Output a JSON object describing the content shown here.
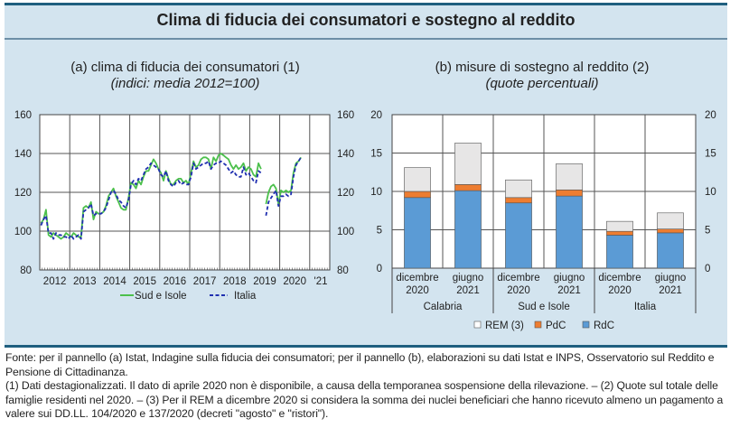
{
  "title": "Clima di fiducia dei consumatori e sostegno al reddito",
  "panel_a": {
    "title": "(a) clima di fiducia dei consumatori (1)",
    "subtitle": "(indici: media 2012=100)"
  },
  "panel_b": {
    "title": "(b) misure di sostegno al reddito (2)",
    "subtitle": "(quote percentuali)"
  },
  "notes": {
    "source": "Fonte: per il pannello (a) Istat, Indagine sulla fiducia dei consumatori; per il pannello (b), elaborazioni su dati Istat e INPS, Osservatorio sul Reddito e Pensione di Cittadinanza.",
    "footnotes": "(1) Dati destagionalizzati. Il dato di aprile 2020 non è disponibile, a causa della temporanea sospensione della rilevazione. – (2) Quote sul totale delle famiglie residenti nel 2020. – (3) Per il REM a dicembre 2020 si considera la somma dei nuclei beneficiari che hanno ricevuto almeno un pagamento a valere sui DD.LL. 104/2020 e 137/2020 (decreti \"agosto\" e \"ristori\")."
  },
  "chart_data": [
    {
      "type": "line",
      "title": "(a) clima di fiducia dei consumatori (1)",
      "subtitle": "(indici: media 2012=100)",
      "xlabel": "",
      "ylabel": "",
      "ylim": [
        80,
        160
      ],
      "yticks": [
        80,
        100,
        120,
        140,
        160
      ],
      "xtick_labels": [
        "2012",
        "2013",
        "2014",
        "2015",
        "2016",
        "2017",
        "2018",
        "2019",
        "2020",
        "'21"
      ],
      "x_start": "2012-01",
      "frequency": "monthly",
      "grid": true,
      "legend_position": "bottom",
      "series": [
        {
          "name": "Sud e Isole",
          "color": "#4cc04c",
          "style": "solid",
          "values": [
            104,
            106,
            111,
            98,
            97,
            99,
            98,
            97,
            96,
            97,
            99,
            98,
            97,
            99,
            98,
            97,
            97,
            112,
            113,
            112,
            115,
            106,
            110,
            109,
            109,
            110,
            113,
            118,
            120,
            122,
            118,
            115,
            112,
            111,
            111,
            117,
            125,
            124,
            122,
            126,
            124,
            128,
            131,
            131,
            134,
            137,
            135,
            132,
            130,
            126,
            131,
            127,
            124,
            124,
            126,
            127,
            127,
            125,
            126,
            124,
            130,
            136,
            133,
            134,
            137,
            138,
            138,
            137,
            132,
            138,
            136,
            139,
            140,
            139,
            138,
            137,
            134,
            132,
            134,
            132,
            133,
            135,
            131,
            133,
            132,
            129,
            128,
            135,
            132,
            null,
            114,
            120,
            123,
            124,
            122,
            114,
            121,
            120,
            121,
            120,
            121,
            130,
            135,
            136,
            138
          ]
        },
        {
          "name": "Italia",
          "color": "#1f2fb0",
          "style": "dashed",
          "values": [
            103,
            106,
            108,
            99,
            99,
            96,
            99,
            98,
            98,
            97,
            97,
            96,
            98,
            96,
            97,
            98,
            96,
            110,
            111,
            112,
            114,
            108,
            109,
            109,
            109,
            110,
            112,
            116,
            120,
            121,
            119,
            116,
            115,
            113,
            112,
            116,
            124,
            126,
            124,
            127,
            126,
            129,
            132,
            133,
            135,
            134,
            133,
            132,
            129,
            128,
            131,
            126,
            124,
            123,
            125,
            126,
            124,
            125,
            124,
            124,
            128,
            135,
            132,
            133,
            134,
            135,
            135,
            136,
            132,
            134,
            135,
            135,
            136,
            135,
            134,
            132,
            130,
            131,
            129,
            128,
            128,
            133,
            129,
            130,
            128,
            126,
            125,
            131,
            130,
            null,
            108,
            115,
            117,
            119,
            121,
            113,
            118,
            118,
            119,
            118,
            119,
            128,
            134,
            136,
            138
          ]
        }
      ]
    },
    {
      "type": "bar",
      "stacked": true,
      "title": "(b) misure di sostegno al reddito (2)",
      "subtitle": "(quote percentuali)",
      "xlabel": "",
      "ylabel": "",
      "ylim": [
        0,
        20
      ],
      "yticks": [
        0,
        5,
        10,
        15,
        20
      ],
      "grid": true,
      "legend_position": "bottom",
      "categories": [
        "dicembre 2020",
        "giugno 2021",
        "dicembre 2020",
        "giugno 2021",
        "dicembre 2020",
        "giugno 2021"
      ],
      "category_lines": [
        [
          "dicembre",
          "2020"
        ],
        [
          "giugno",
          "2021"
        ],
        [
          "dicembre",
          "2020"
        ],
        [
          "giugno",
          "2021"
        ],
        [
          "dicembre",
          "2020"
        ],
        [
          "giugno",
          "2021"
        ]
      ],
      "groups": [
        {
          "name": "Calabria",
          "categories": [
            0,
            1
          ]
        },
        {
          "name": "Sud e Isole",
          "categories": [
            2,
            3
          ]
        },
        {
          "name": "Italia",
          "categories": [
            4,
            5
          ]
        }
      ],
      "series": [
        {
          "name": "RdC",
          "color": "#5b9bd5",
          "values": [
            9.2,
            10.1,
            8.5,
            9.4,
            4.3,
            4.6
          ]
        },
        {
          "name": "PdC",
          "color": "#ed7d31",
          "values": [
            0.8,
            0.8,
            0.7,
            0.8,
            0.5,
            0.5
          ]
        },
        {
          "name": "REM (3)",
          "color": "#e7e6e6",
          "values": [
            3.1,
            5.4,
            2.3,
            3.4,
            1.3,
            2.1
          ]
        }
      ],
      "legend_order": [
        "REM (3)",
        "PdC",
        "RdC"
      ]
    }
  ]
}
